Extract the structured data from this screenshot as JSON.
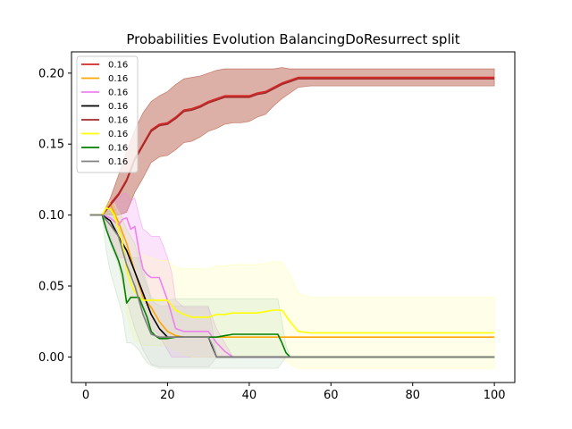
{
  "chart_data": {
    "type": "line",
    "title": "Probabilities Evolution BalancingDoResurrect split",
    "xlabel": "",
    "ylabel": "",
    "xlim": [
      -3.5,
      105
    ],
    "ylim": [
      -0.018,
      0.215
    ],
    "xticks": [
      0,
      20,
      40,
      60,
      80,
      100
    ],
    "yticks": [
      0.0,
      0.05,
      0.1,
      0.15,
      0.2
    ],
    "xtick_labels": [
      "0",
      "20",
      "40",
      "60",
      "80",
      "100"
    ],
    "ytick_labels": [
      "0.00",
      "0.05",
      "0.10",
      "0.15",
      "0.20"
    ],
    "grid": false,
    "legend_position": "top-left",
    "series": [
      {
        "name": "0.16",
        "color": "#d62728",
        "x": [
          1,
          4,
          6,
          8,
          10,
          12,
          14,
          16,
          18,
          20,
          22,
          24,
          26,
          28,
          30,
          32,
          34,
          36,
          38,
          40,
          42,
          44,
          46,
          48,
          50,
          52,
          55,
          60,
          70,
          80,
          90,
          100
        ],
        "y": [
          0.1,
          0.1,
          0.108,
          0.115,
          0.125,
          0.14,
          0.15,
          0.16,
          0.164,
          0.165,
          0.169,
          0.174,
          0.175,
          0.177,
          0.18,
          0.182,
          0.184,
          0.184,
          0.184,
          0.184,
          0.186,
          0.187,
          0.19,
          0.193,
          0.195,
          0.197,
          0.197,
          0.197,
          0.197,
          0.197,
          0.197,
          0.197
        ],
        "band_lo": [
          0.1,
          0.1,
          0.1,
          0.1,
          0.102,
          0.116,
          0.126,
          0.137,
          0.141,
          0.142,
          0.146,
          0.151,
          0.152,
          0.155,
          0.159,
          0.161,
          0.164,
          0.165,
          0.165,
          0.166,
          0.169,
          0.171,
          0.177,
          0.182,
          0.186,
          0.19,
          0.191,
          0.191,
          0.191,
          0.191,
          0.191,
          0.191
        ],
        "band_hi": [
          0.1,
          0.1,
          0.112,
          0.128,
          0.145,
          0.16,
          0.172,
          0.18,
          0.184,
          0.187,
          0.192,
          0.196,
          0.197,
          0.198,
          0.2,
          0.202,
          0.203,
          0.203,
          0.203,
          0.203,
          0.203,
          0.203,
          0.203,
          0.204,
          0.203,
          0.203,
          0.203,
          0.203,
          0.203,
          0.203,
          0.203,
          0.203
        ],
        "band_color": "#a83a20"
      },
      {
        "name": "0.16",
        "color": "#ffa500",
        "x": [
          1,
          4,
          6,
          8,
          10,
          12,
          14,
          16,
          18,
          20,
          22,
          24,
          26,
          28,
          30,
          32,
          34,
          36,
          40,
          50,
          60,
          80,
          100
        ],
        "y": [
          0.1,
          0.1,
          0.108,
          0.095,
          0.08,
          0.06,
          0.042,
          0.035,
          0.025,
          0.018,
          0.015,
          0.014,
          0.014,
          0.014,
          0.014,
          0.014,
          0.014,
          0.014,
          0.014,
          0.014,
          0.014,
          0.014,
          0.014
        ]
      },
      {
        "name": "0.16",
        "color": "#ee82ee",
        "x": [
          1,
          4,
          6,
          8,
          9,
          10,
          11,
          12,
          13,
          14,
          15,
          16,
          17,
          18,
          19,
          20,
          21,
          22,
          24,
          26,
          28,
          30,
          32,
          34,
          36,
          40,
          60,
          100
        ],
        "y": [
          0.1,
          0.1,
          0.098,
          0.093,
          0.097,
          0.098,
          0.09,
          0.092,
          0.075,
          0.062,
          0.058,
          0.056,
          0.056,
          0.056,
          0.048,
          0.04,
          0.03,
          0.02,
          0.018,
          0.018,
          0.018,
          0.018,
          0.01,
          0.004,
          0.0,
          0.0,
          0.0,
          0.0
        ],
        "band_lo": [
          0.1,
          0.1,
          0.085,
          0.07,
          0.07,
          0.07,
          0.06,
          0.055,
          0.04,
          0.03,
          0.025,
          0.02,
          0.018,
          0.015,
          0.01,
          0.005,
          0.0,
          0.0,
          0.0,
          0.0,
          0.0,
          0.0,
          0.0,
          0.0,
          0.0,
          0.0,
          0.0,
          0.0
        ],
        "band_hi": [
          0.1,
          0.1,
          0.108,
          0.112,
          0.115,
          0.115,
          0.11,
          0.112,
          0.1,
          0.09,
          0.088,
          0.085,
          0.085,
          0.085,
          0.078,
          0.07,
          0.06,
          0.04,
          0.035,
          0.035,
          0.035,
          0.035,
          0.02,
          0.01,
          0.0,
          0.0,
          0.0,
          0.0
        ],
        "band_color": "#ee82ee"
      },
      {
        "name": "0.16",
        "color": "#000000",
        "x": [
          1,
          4,
          6,
          8,
          10,
          12,
          14,
          16,
          18,
          20,
          24,
          30,
          32,
          40,
          60,
          100
        ],
        "y": [
          0.1,
          0.1,
          0.096,
          0.085,
          0.075,
          0.06,
          0.045,
          0.03,
          0.02,
          0.014,
          0.014,
          0.014,
          0.0,
          0.0,
          0.0,
          0.0
        ]
      },
      {
        "name": "0.16",
        "color": "#a52a2a",
        "x": [
          1,
          4,
          6,
          8,
          10,
          12,
          14,
          16,
          18,
          20,
          22,
          24,
          26,
          28,
          30,
          32,
          34,
          36,
          38,
          40,
          42,
          44,
          46,
          48,
          50,
          52,
          55,
          60,
          70,
          80,
          90,
          100
        ],
        "y": [
          0.1,
          0.1,
          0.107,
          0.114,
          0.124,
          0.139,
          0.149,
          0.159,
          0.163,
          0.164,
          0.168,
          0.173,
          0.174,
          0.176,
          0.179,
          0.181,
          0.183,
          0.183,
          0.183,
          0.183,
          0.185,
          0.186,
          0.189,
          0.192,
          0.194,
          0.196,
          0.196,
          0.196,
          0.196,
          0.196,
          0.196,
          0.196
        ]
      },
      {
        "name": "0.16",
        "color": "#ffff00",
        "x": [
          1,
          4,
          5,
          6,
          7,
          8,
          9,
          10,
          11,
          12,
          13,
          14,
          16,
          18,
          20,
          22,
          24,
          26,
          28,
          30,
          32,
          34,
          36,
          38,
          40,
          42,
          44,
          46,
          48,
          50,
          52,
          55,
          60,
          70,
          80,
          90,
          100
        ],
        "y": [
          0.1,
          0.1,
          0.105,
          0.104,
          0.1,
          0.09,
          0.08,
          0.062,
          0.052,
          0.046,
          0.042,
          0.04,
          0.04,
          0.04,
          0.04,
          0.033,
          0.03,
          0.028,
          0.028,
          0.028,
          0.03,
          0.03,
          0.031,
          0.031,
          0.031,
          0.031,
          0.032,
          0.033,
          0.033,
          0.025,
          0.018,
          0.017,
          0.017,
          0.017,
          0.017,
          0.017,
          0.017
        ],
        "band_lo": [
          0.1,
          0.1,
          0.095,
          0.09,
          0.08,
          0.065,
          0.05,
          0.03,
          0.02,
          0.012,
          0.01,
          0.008,
          0.008,
          0.008,
          0.008,
          0.005,
          0.002,
          0.0,
          0.0,
          0.0,
          0.0,
          0.0,
          0.0,
          0.0,
          0.0,
          0.0,
          0.0,
          0.0,
          0.0,
          -0.005,
          -0.008,
          -0.008,
          -0.008,
          -0.008,
          -0.008,
          -0.008,
          -0.008
        ],
        "band_hi": [
          0.1,
          0.1,
          0.11,
          0.11,
          0.108,
          0.102,
          0.098,
          0.09,
          0.085,
          0.08,
          0.075,
          0.072,
          0.07,
          0.068,
          0.068,
          0.063,
          0.062,
          0.062,
          0.062,
          0.062,
          0.064,
          0.064,
          0.065,
          0.065,
          0.065,
          0.065,
          0.066,
          0.067,
          0.067,
          0.058,
          0.045,
          0.042,
          0.042,
          0.042,
          0.042,
          0.042,
          0.042
        ],
        "band_color": "#ffff99"
      },
      {
        "name": "0.16",
        "color": "#008000",
        "x": [
          1,
          4,
          5,
          6,
          7,
          8,
          9,
          10,
          11,
          12,
          13,
          14,
          15,
          16,
          17,
          18,
          20,
          22,
          24,
          26,
          28,
          30,
          32,
          34,
          36,
          38,
          40,
          42,
          44,
          46,
          47,
          48,
          49,
          50,
          55,
          60,
          100
        ],
        "y": [
          0.1,
          0.1,
          0.09,
          0.082,
          0.075,
          0.068,
          0.058,
          0.038,
          0.042,
          0.042,
          0.042,
          0.035,
          0.028,
          0.018,
          0.015,
          0.013,
          0.013,
          0.014,
          0.014,
          0.014,
          0.014,
          0.014,
          0.014,
          0.015,
          0.016,
          0.016,
          0.016,
          0.016,
          0.016,
          0.016,
          0.016,
          0.01,
          0.003,
          0.0,
          0.0,
          0.0,
          0.0
        ],
        "band_lo": [
          0.1,
          0.1,
          0.075,
          0.06,
          0.05,
          0.04,
          0.03,
          0.01,
          0.01,
          0.008,
          0.005,
          0.0,
          -0.004,
          -0.006,
          -0.007,
          -0.008,
          -0.008,
          -0.008,
          -0.008,
          -0.008,
          -0.008,
          -0.008,
          -0.008,
          -0.008,
          -0.008,
          -0.008,
          -0.008,
          -0.008,
          -0.008,
          -0.008,
          -0.008,
          -0.004,
          0.0,
          0.0,
          0.0,
          0.0,
          0.0
        ],
        "band_hi": [
          0.1,
          0.1,
          0.105,
          0.102,
          0.098,
          0.092,
          0.085,
          0.068,
          0.07,
          0.07,
          0.07,
          0.062,
          0.052,
          0.042,
          0.04,
          0.04,
          0.04,
          0.041,
          0.041,
          0.041,
          0.041,
          0.041,
          0.041,
          0.041,
          0.041,
          0.041,
          0.041,
          0.041,
          0.041,
          0.041,
          0.041,
          0.025,
          0.008,
          0.0,
          0.0,
          0.0,
          0.0
        ],
        "band_color": "#b8d8b8"
      },
      {
        "name": "0.16",
        "color": "#808080",
        "x": [
          1,
          4,
          6,
          8,
          10,
          12,
          14,
          16,
          18,
          20,
          22,
          24,
          26,
          28,
          30,
          31,
          32,
          34,
          36,
          40,
          60,
          100
        ],
        "y": [
          0.1,
          0.1,
          0.093,
          0.085,
          0.065,
          0.05,
          0.03,
          0.016,
          0.014,
          0.014,
          0.014,
          0.014,
          0.014,
          0.014,
          0.014,
          0.008,
          0.0,
          0.0,
          0.0,
          0.0,
          0.0,
          0.0
        ],
        "band_lo": [
          0.1,
          0.1,
          0.08,
          0.065,
          0.04,
          0.02,
          0.005,
          -0.005,
          -0.007,
          -0.007,
          -0.007,
          -0.007,
          -0.007,
          -0.007,
          -0.007,
          -0.004,
          0.0,
          0.0,
          0.0,
          0.0,
          0.0,
          0.0
        ],
        "band_hi": [
          0.1,
          0.1,
          0.105,
          0.104,
          0.09,
          0.08,
          0.058,
          0.04,
          0.036,
          0.036,
          0.036,
          0.036,
          0.036,
          0.036,
          0.036,
          0.02,
          0.0,
          0.0,
          0.0,
          0.0,
          0.0,
          0.0
        ],
        "band_color": "#c8c8c8"
      }
    ]
  }
}
